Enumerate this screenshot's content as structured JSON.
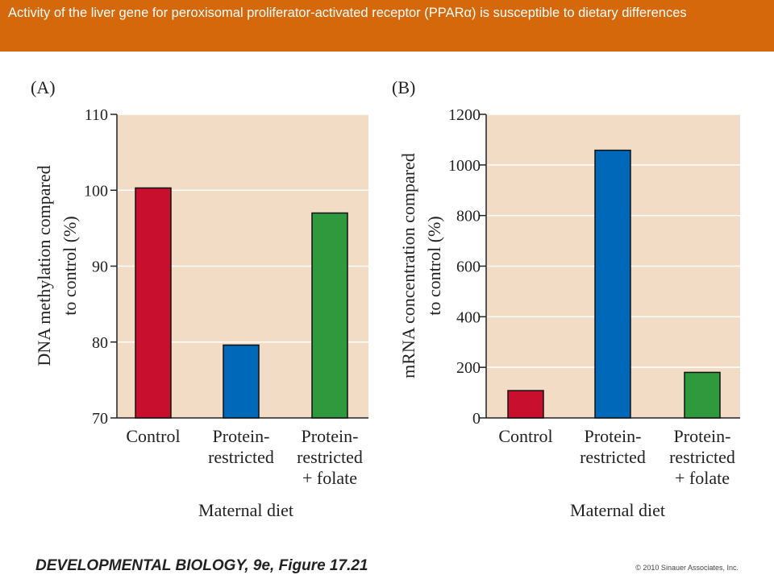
{
  "slide": {
    "title": "Activity of the liver gene for peroxisomal proliferator-activated receptor (PPARα) is susceptible to dietary differences",
    "footer": "DEVELOPMENTAL BIOLOGY, 9e, Figure 17.21",
    "copyright": "© 2010 Sinauer Associates, Inc."
  },
  "colors": {
    "banner": "#d4680a",
    "plot_bg": "#f2dcc5",
    "red": "#c8102e",
    "blue": "#0068b8",
    "green": "#2e9a3d"
  },
  "chart_data": [
    {
      "type": "bar",
      "panel_label": "(A)",
      "categories": [
        [
          "Control"
        ],
        [
          "Protein-",
          "restricted"
        ],
        [
          "Protein-",
          "restricted",
          "+ folate"
        ]
      ],
      "values": [
        100.3,
        79.6,
        97
      ],
      "colors": [
        "#c8102e",
        "#0068b8",
        "#2e9a3d"
      ],
      "ylabel": [
        "DNA methylation compared",
        "to control (%)"
      ],
      "xlabel": "Maternal diet",
      "ylim": [
        70,
        110
      ],
      "yticks": [
        70,
        80,
        90,
        100,
        110
      ],
      "grid": true
    },
    {
      "type": "bar",
      "panel_label": "(B)",
      "categories": [
        [
          "Control"
        ],
        [
          "Protein-",
          "restricted"
        ],
        [
          "Protein-",
          "restricted",
          "+ folate"
        ]
      ],
      "values": [
        108,
        1058,
        180
      ],
      "colors": [
        "#c8102e",
        "#0068b8",
        "#2e9a3d"
      ],
      "ylabel": [
        "mRNA concentration compared",
        "to control (%)"
      ],
      "xlabel": "Maternal diet",
      "ylim": [
        0,
        1200
      ],
      "yticks": [
        0,
        200,
        400,
        600,
        800,
        1000,
        1200
      ],
      "grid": true
    }
  ]
}
